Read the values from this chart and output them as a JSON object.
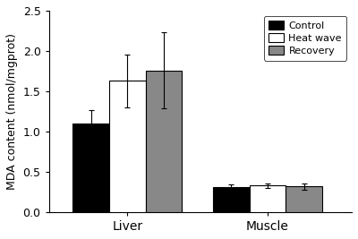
{
  "groups": [
    "Liver",
    "Muscle"
  ],
  "conditions": [
    "Control",
    "Heat wave",
    "Recovery"
  ],
  "bar_colors": [
    "#000000",
    "#ffffff",
    "#888888"
  ],
  "bar_edgecolors": [
    "#000000",
    "#000000",
    "#000000"
  ],
  "values": {
    "Liver": [
      1.1,
      1.63,
      1.76
    ],
    "Muscle": [
      0.31,
      0.33,
      0.32
    ]
  },
  "errors": {
    "Liver": [
      0.17,
      0.33,
      0.47
    ],
    "Muscle": [
      0.03,
      0.03,
      0.04
    ]
  },
  "ylabel": "MDA content (nmol/mgprot)",
  "ylim": [
    0.0,
    2.5
  ],
  "yticks": [
    0.0,
    0.5,
    1.0,
    1.5,
    2.0,
    2.5
  ],
  "bar_width": 0.13,
  "legend_labels": [
    "Control",
    "Heat wave",
    "Recovery"
  ],
  "background_color": "#ffffff",
  "ecolor": "#000000",
  "capsize": 2.5,
  "linewidth": 0.8,
  "group_centers": [
    0.28,
    0.78
  ],
  "xlim": [
    0.0,
    1.08
  ]
}
